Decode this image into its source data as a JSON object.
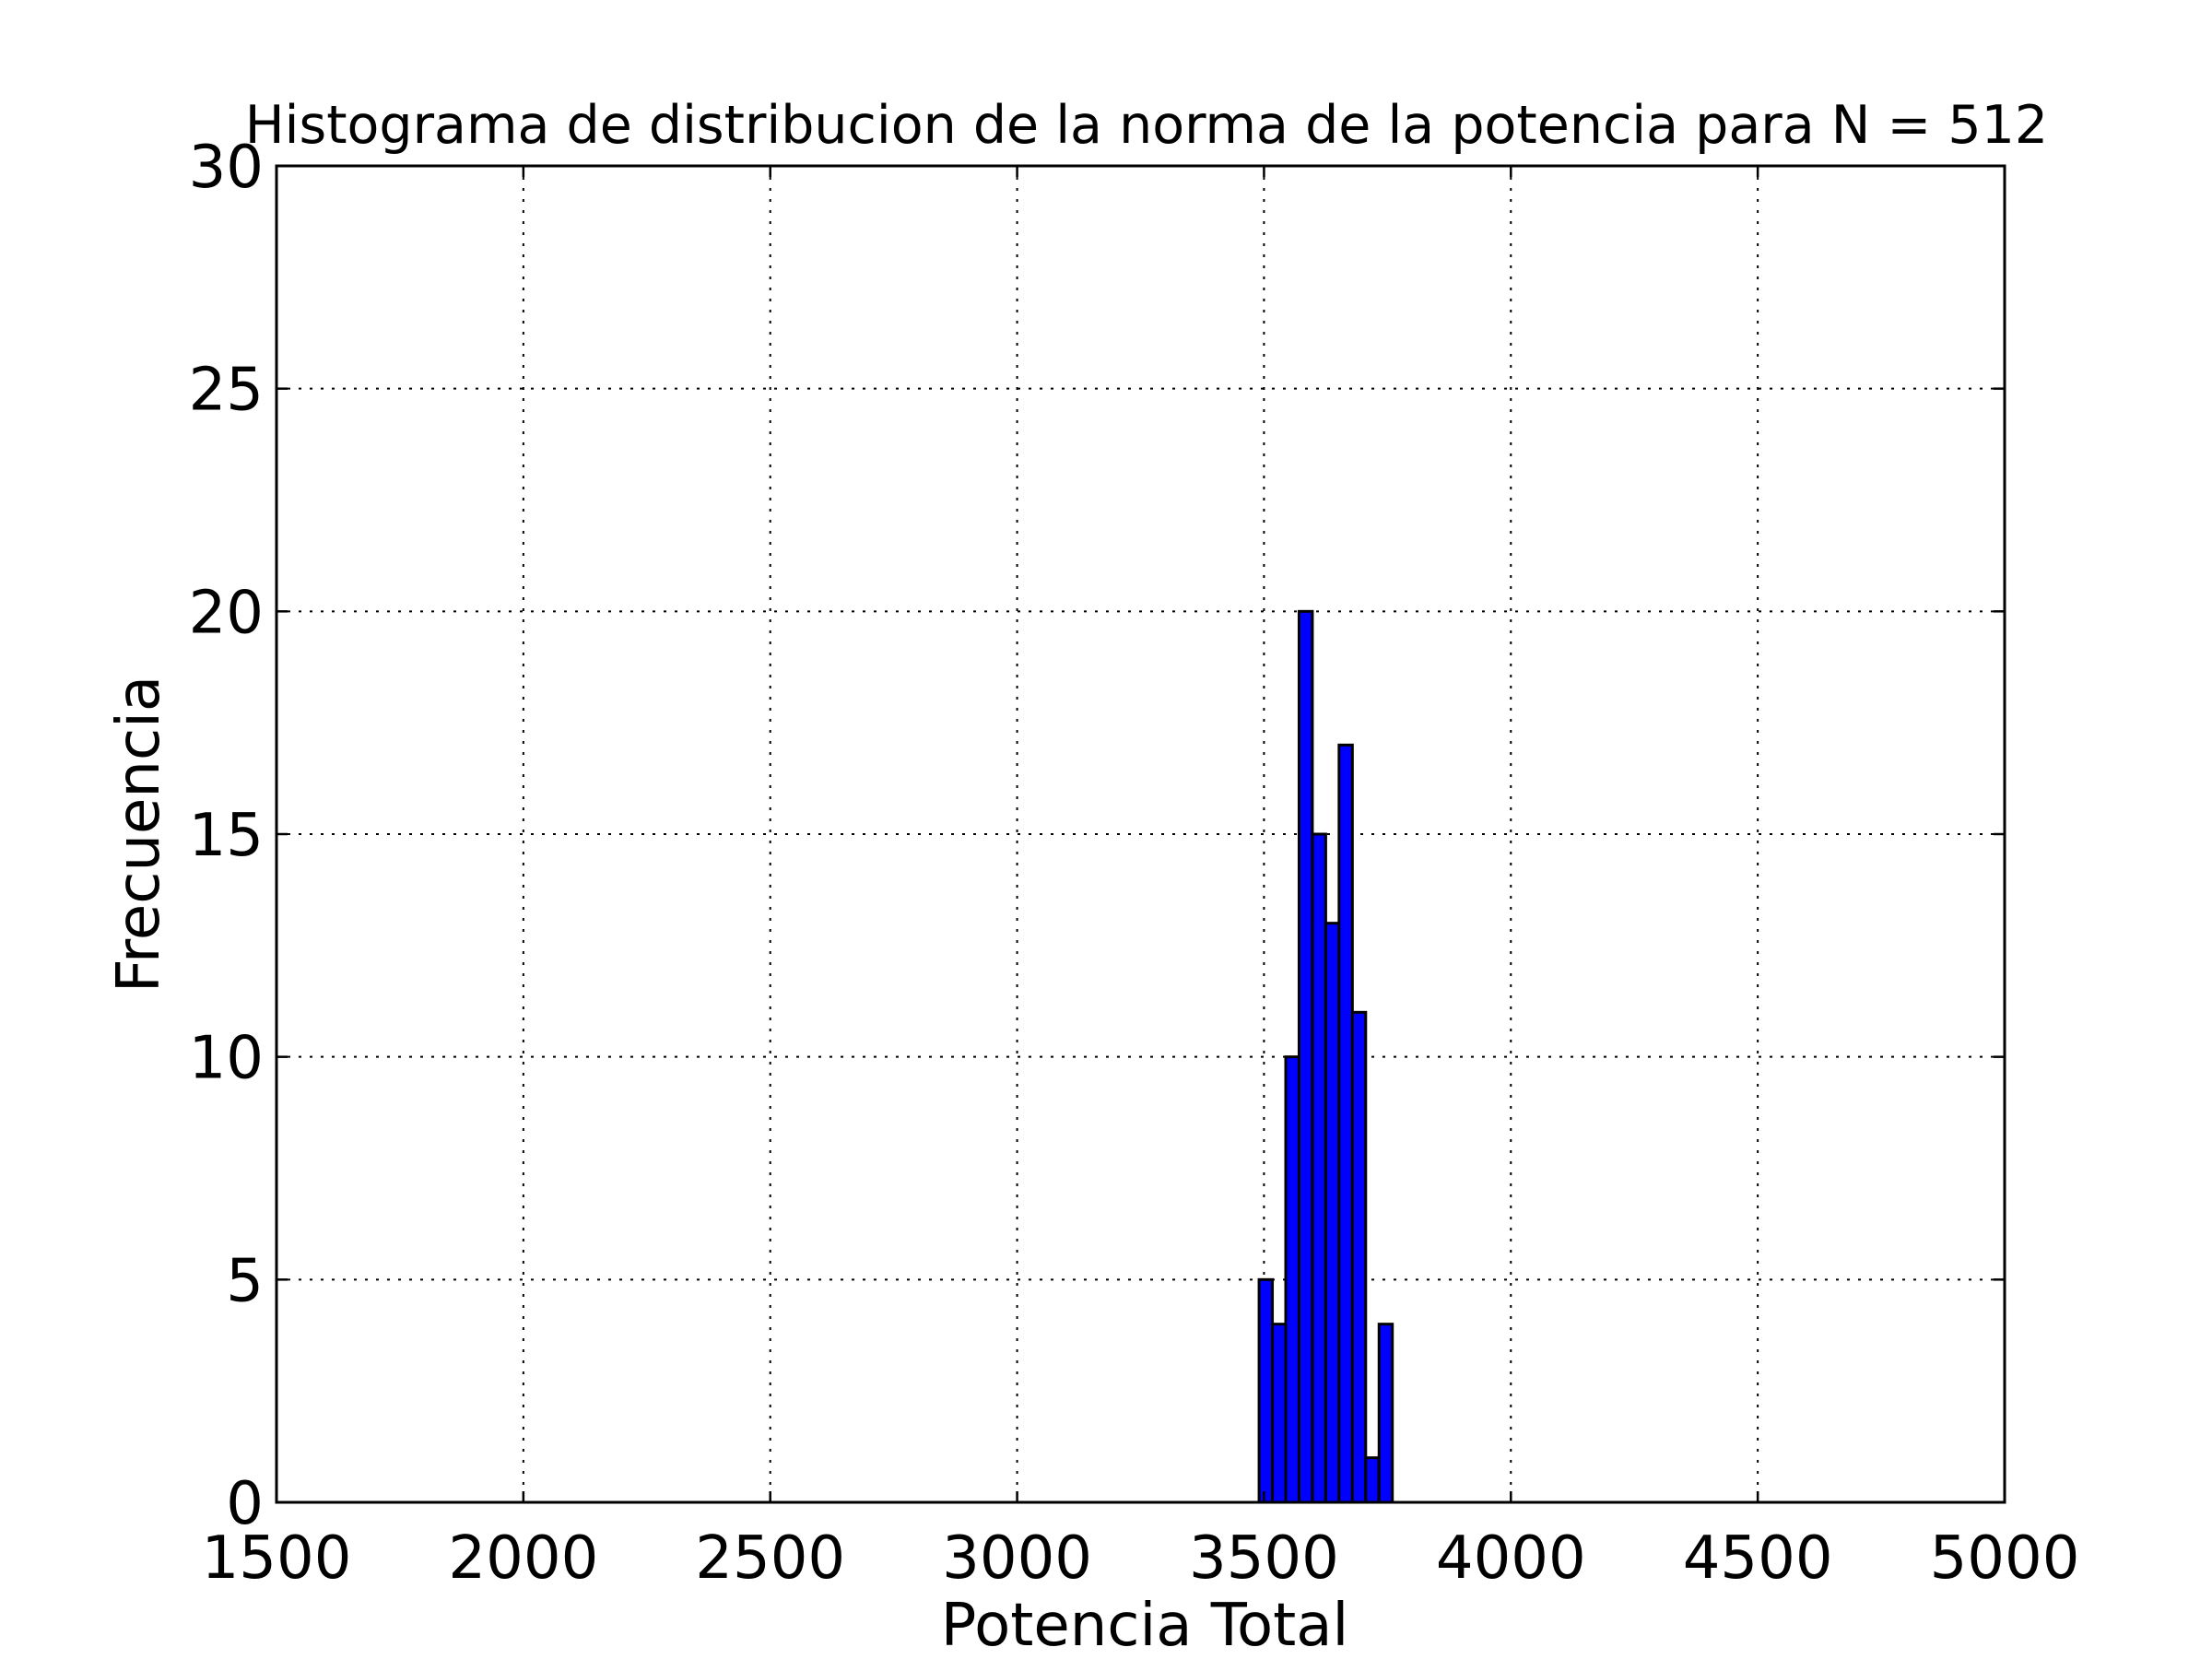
{
  "chart_data": {
    "type": "bar",
    "title": "Histograma de distribucion de la norma de la potencia para N = 512",
    "xlabel": "Potencia Total",
    "ylabel": "Frecuencia",
    "xlim": [
      1500,
      5000
    ],
    "ylim": [
      0,
      30
    ],
    "xticks": [
      "1500",
      "2000",
      "2500",
      "3000",
      "3500",
      "4000",
      "4500",
      "5000"
    ],
    "yticks": [
      "0",
      "5",
      "10",
      "15",
      "20",
      "25",
      "30"
    ],
    "grid": true,
    "legend": "none",
    "bar_color": "#0000ff",
    "bins": [
      {
        "start": 3490,
        "end": 3517,
        "value": 5
      },
      {
        "start": 3517,
        "end": 3544,
        "value": 4
      },
      {
        "start": 3544,
        "end": 3571,
        "value": 10
      },
      {
        "start": 3571,
        "end": 3598,
        "value": 20
      },
      {
        "start": 3598,
        "end": 3625,
        "value": 15
      },
      {
        "start": 3625,
        "end": 3652,
        "value": 13
      },
      {
        "start": 3652,
        "end": 3679,
        "value": 17
      },
      {
        "start": 3679,
        "end": 3706,
        "value": 11
      },
      {
        "start": 3706,
        "end": 3733,
        "value": 1
      },
      {
        "start": 3733,
        "end": 3760,
        "value": 4
      }
    ]
  }
}
